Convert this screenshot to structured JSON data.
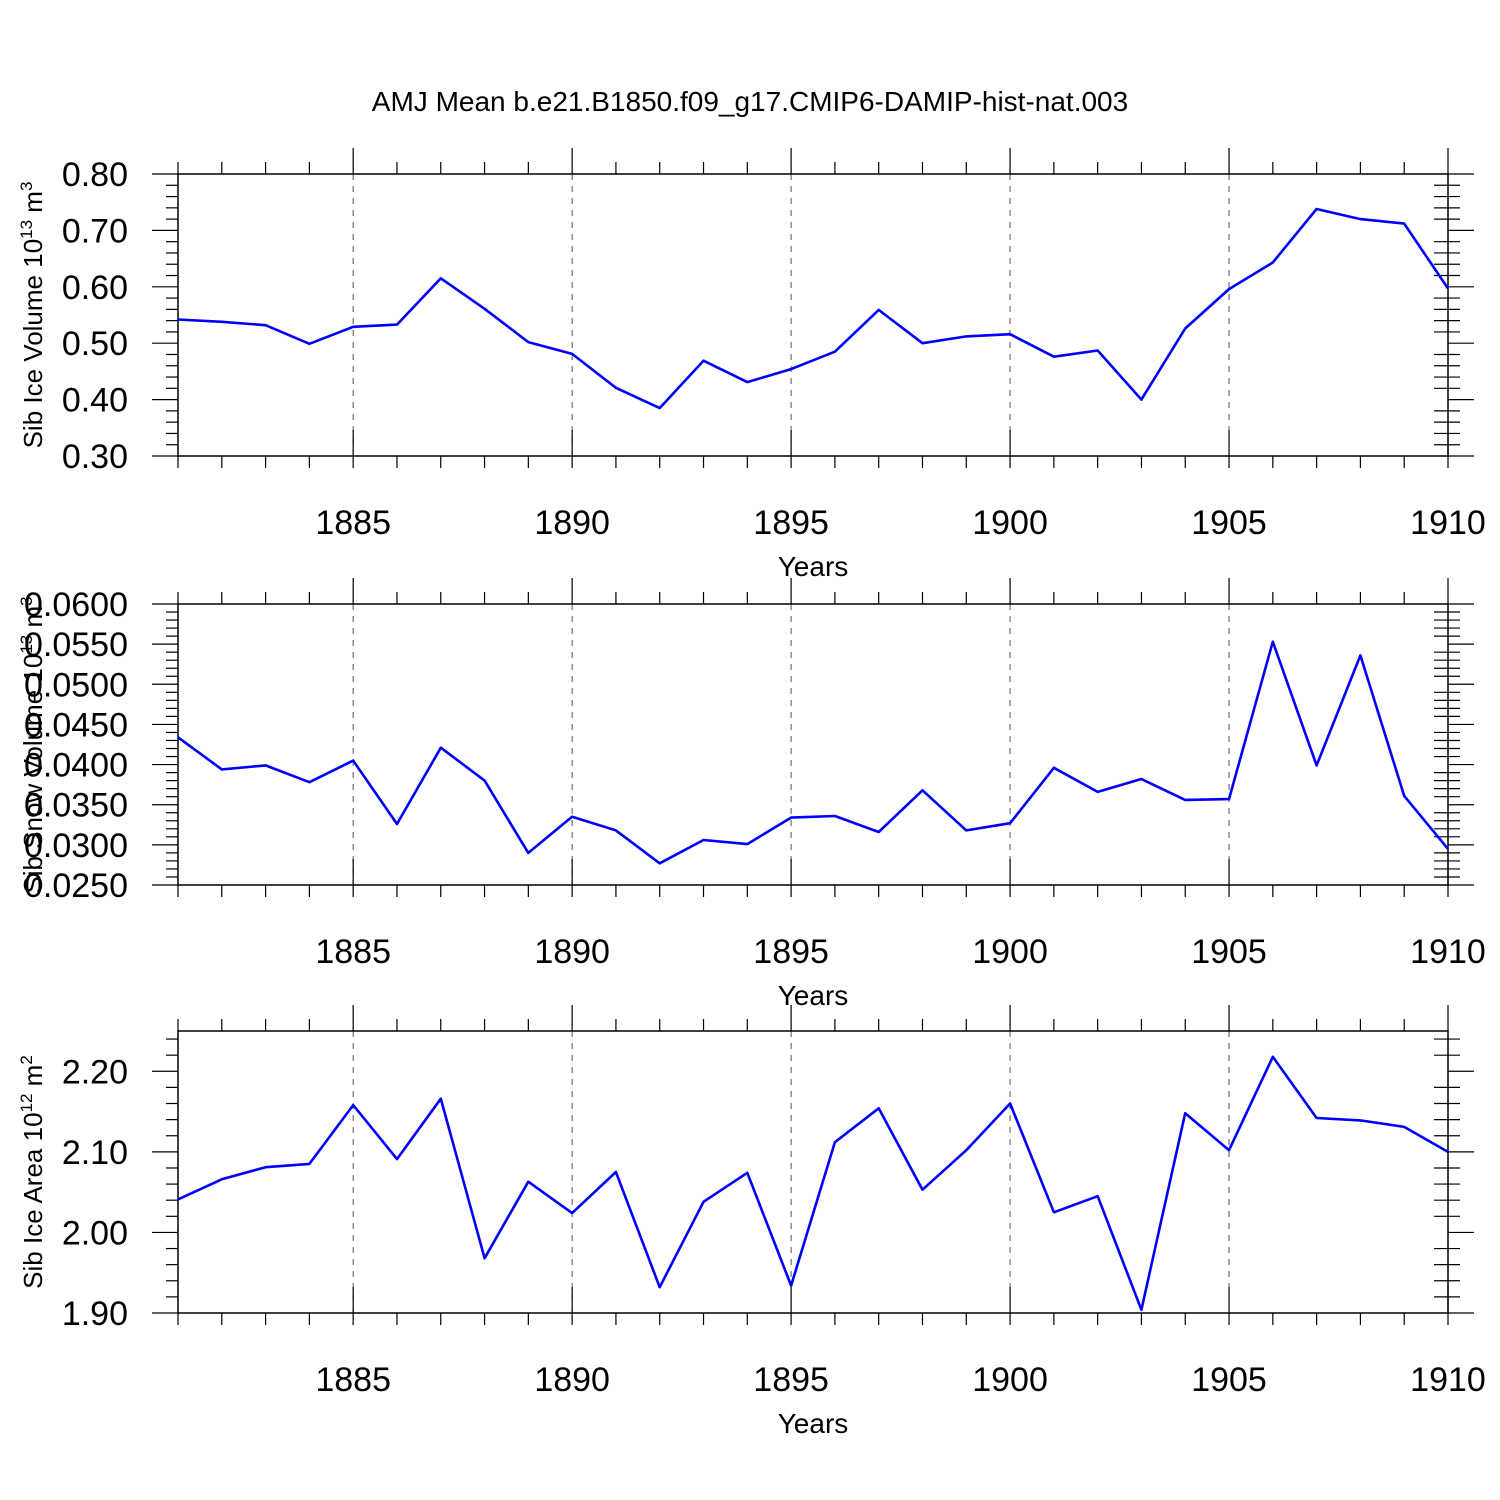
{
  "figure_title": "AMJ Mean b.e21.B1850.f09_g17.CMIP6-DAMIP-hist-nat.003",
  "colors": {
    "series": "#0000ff",
    "axes": "#000000",
    "grid": "#555555"
  },
  "chart_data": [
    {
      "type": "line",
      "title": "AMJ Mean b.e21.B1850.f09_g17.CMIP6-DAMIP-hist-nat.003",
      "xlabel": "Years",
      "ylabel": "Sib Ice Volume 10",
      "ylabel_exponent": "13",
      "ylabel_unit": " m",
      "ylabel_unit_exponent": "3",
      "xlim": [
        1881,
        1910
      ],
      "ylim": [
        0.3,
        0.8
      ],
      "xticks": [
        1885,
        1890,
        1895,
        1900,
        1905,
        1910
      ],
      "yticks": [
        0.3,
        0.4,
        0.5,
        0.6,
        0.7,
        0.8
      ],
      "ytick_labels": [
        "0.30",
        "0.40",
        "0.50",
        "0.60",
        "0.70",
        "0.80"
      ],
      "grid": "vertical dashed at major x ticks",
      "x": [
        1881,
        1882,
        1883,
        1884,
        1885,
        1886,
        1887,
        1888,
        1889,
        1890,
        1891,
        1892,
        1893,
        1894,
        1895,
        1896,
        1897,
        1898,
        1899,
        1900,
        1901,
        1902,
        1903,
        1904,
        1905,
        1906,
        1907,
        1908,
        1909,
        1910
      ],
      "values": [
        0.542,
        0.538,
        0.532,
        0.499,
        0.529,
        0.533,
        0.615,
        0.561,
        0.502,
        0.481,
        0.421,
        0.385,
        0.469,
        0.431,
        0.454,
        0.485,
        0.559,
        0.5,
        0.512,
        0.516,
        0.476,
        0.487,
        0.4,
        0.526,
        0.596,
        0.643,
        0.738,
        0.72,
        0.712,
        0.597
      ]
    },
    {
      "type": "line",
      "xlabel": "Years",
      "ylabel": "Sib Snow Volume 10",
      "ylabel_exponent": "13",
      "ylabel_unit": " m",
      "ylabel_unit_exponent": "3",
      "xlim": [
        1881,
        1910
      ],
      "ylim": [
        0.025,
        0.06
      ],
      "xticks": [
        1885,
        1890,
        1895,
        1900,
        1905,
        1910
      ],
      "yticks": [
        0.025,
        0.03,
        0.035,
        0.04,
        0.045,
        0.05,
        0.055,
        0.06
      ],
      "ytick_labels": [
        "0.0250",
        "0.0300",
        "0.0350",
        "0.0400",
        "0.0450",
        "0.0500",
        "0.0550",
        "0.0600"
      ],
      "grid": "vertical dashed at major x ticks",
      "x": [
        1881,
        1882,
        1883,
        1884,
        1885,
        1886,
        1887,
        1888,
        1889,
        1890,
        1891,
        1892,
        1893,
        1894,
        1895,
        1896,
        1897,
        1898,
        1899,
        1900,
        1901,
        1902,
        1903,
        1904,
        1905,
        1906,
        1907,
        1908,
        1909,
        1910
      ],
      "values": [
        0.0434,
        0.0394,
        0.0399,
        0.0378,
        0.0405,
        0.0326,
        0.0421,
        0.038,
        0.029,
        0.0335,
        0.0318,
        0.0277,
        0.0306,
        0.0301,
        0.0334,
        0.0336,
        0.0316,
        0.0368,
        0.0318,
        0.0327,
        0.0396,
        0.0366,
        0.0382,
        0.0356,
        0.0357,
        0.0553,
        0.0399,
        0.0536,
        0.0361,
        0.0295
      ]
    },
    {
      "type": "line",
      "xlabel": "Years",
      "ylabel": "Sib Ice Area 10",
      "ylabel_exponent": "12",
      "ylabel_unit": " m",
      "ylabel_unit_exponent": "2",
      "xlim": [
        1881,
        1910
      ],
      "ylim": [
        1.9,
        2.25
      ],
      "xticks": [
        1885,
        1890,
        1895,
        1900,
        1905,
        1910
      ],
      "yticks": [
        1.9,
        2.0,
        2.1,
        2.2
      ],
      "ytick_labels": [
        "1.90",
        "2.00",
        "2.10",
        "2.20"
      ],
      "grid": "vertical dashed at major x ticks",
      "x": [
        1881,
        1882,
        1883,
        1884,
        1885,
        1886,
        1887,
        1888,
        1889,
        1890,
        1891,
        1892,
        1893,
        1894,
        1895,
        1896,
        1897,
        1898,
        1899,
        1900,
        1901,
        1902,
        1903,
        1904,
        1905,
        1906,
        1907,
        1908,
        1909,
        1910
      ],
      "values": [
        2.041,
        2.066,
        2.081,
        2.085,
        2.158,
        2.091,
        2.166,
        1.968,
        2.063,
        2.024,
        2.075,
        1.932,
        2.038,
        2.074,
        1.934,
        2.112,
        2.154,
        2.053,
        2.102,
        2.16,
        2.025,
        2.045,
        1.904,
        2.148,
        2.102,
        2.218,
        2.142,
        2.139,
        2.131,
        2.1
      ]
    }
  ]
}
